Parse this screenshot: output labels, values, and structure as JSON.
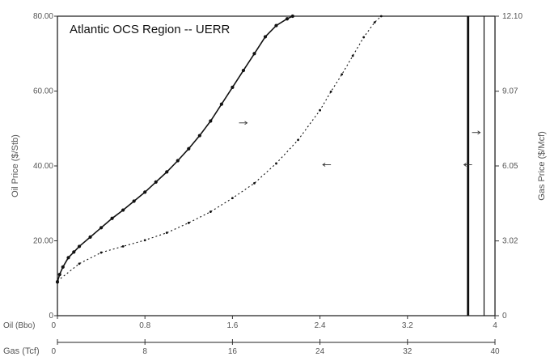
{
  "chart_data": {
    "type": "line",
    "title": "Atlantic OCS Region  -- UERR",
    "left_axis": {
      "label": "Oil Price ($/Stb)",
      "range": [
        0,
        80
      ],
      "ticks": [
        0,
        20,
        40,
        60,
        80
      ],
      "tick_labels": [
        "0",
        "20.00",
        "40.00",
        "60.00",
        "80.00"
      ]
    },
    "right_axis": {
      "label": "Gas Price ($/Mcf)",
      "range": [
        0,
        12.1
      ],
      "ticks": [
        0,
        3.02,
        6.05,
        9.07,
        12.1
      ],
      "tick_labels": [
        "0",
        "3.02",
        "6.05",
        "9.07",
        "12.10"
      ]
    },
    "x_axis_oil": {
      "label": "Oil (Bbo)",
      "range": [
        0,
        4
      ],
      "ticks": [
        0,
        0.8,
        1.6,
        2.4,
        3.2,
        4
      ],
      "tick_labels": [
        "0",
        "0.8",
        "1.6",
        "2.4",
        "3.2",
        "4"
      ]
    },
    "x_axis_gas": {
      "label": "Gas (Tcf)",
      "range": [
        0,
        40
      ],
      "ticks": [
        0,
        8,
        16,
        24,
        32,
        40
      ],
      "tick_labels": [
        "0",
        "8",
        "16",
        "24",
        "32",
        "40"
      ]
    },
    "series": [
      {
        "role": "oil",
        "style": "solid-dots",
        "x": [
          0,
          0.02,
          0.05,
          0.1,
          0.15,
          0.2,
          0.3,
          0.4,
          0.5,
          0.6,
          0.7,
          0.8,
          0.9,
          1.0,
          1.1,
          1.2,
          1.3,
          1.4,
          1.5,
          1.6,
          1.7,
          1.8,
          1.9,
          2.0,
          2.1,
          2.15
        ],
        "y": [
          9,
          11,
          13,
          15.5,
          17,
          18.5,
          21,
          23.5,
          26,
          28.2,
          30.6,
          33,
          35.7,
          38.4,
          41.4,
          44.6,
          48.1,
          52,
          56.5,
          61,
          65.5,
          70,
          74.5,
          77.5,
          79.3,
          80
        ]
      },
      {
        "role": "gas",
        "style": "dotted",
        "x": [
          0,
          2,
          4,
          6,
          8,
          10,
          12,
          14,
          16,
          18,
          20,
          22,
          24,
          25,
          26,
          27,
          28,
          29,
          29.6
        ],
        "y": [
          1.4,
          2.1,
          2.55,
          2.8,
          3.05,
          3.35,
          3.75,
          4.2,
          4.75,
          5.35,
          6.15,
          7.1,
          8.3,
          9.05,
          9.75,
          10.5,
          11.25,
          11.85,
          12.1
        ]
      }
    ],
    "verticals": [
      {
        "role": "oil",
        "x": 3.76
      },
      {
        "role": "gas",
        "x": 37.5
      },
      {
        "role": "oil",
        "x": 3.9
      }
    ],
    "legend": "none",
    "grid": false
  }
}
